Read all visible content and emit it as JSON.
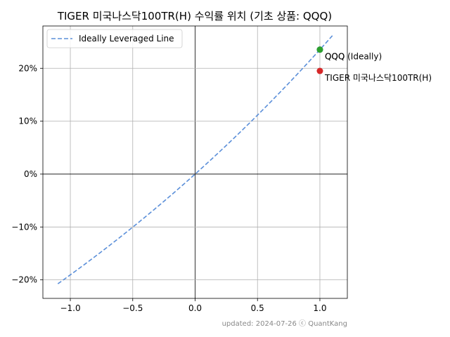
{
  "chart_data": {
    "type": "scatter",
    "title": "TIGER 미국나스닥100TR(H) 수익률 위치 (기초 상품: QQQ)",
    "xlabel": "",
    "ylabel": "",
    "xlim": [
      -1.22,
      1.22
    ],
    "ylim": [
      -0.235,
      0.28
    ],
    "x_ticks": [
      {
        "value": -1.0,
        "label": "−1.0"
      },
      {
        "value": -0.5,
        "label": "−0.5"
      },
      {
        "value": 0.0,
        "label": "0.0"
      },
      {
        "value": 0.5,
        "label": "0.5"
      },
      {
        "value": 1.0,
        "label": "1.0"
      }
    ],
    "y_ticks": [
      {
        "value": -0.2,
        "label": "−20%"
      },
      {
        "value": -0.1,
        "label": "−10%"
      },
      {
        "value": 0.0,
        "label": "0%"
      },
      {
        "value": 0.1,
        "label": "10%"
      },
      {
        "value": 0.2,
        "label": "20%"
      }
    ],
    "grid": true,
    "legend_position": "top-left",
    "series": [
      {
        "name": "Ideally Leveraged Line",
        "kind": "line",
        "style": "dashed",
        "color": "#5b8fd9",
        "base_return": 0.2353,
        "x_range": [
          -1.1,
          1.1
        ]
      }
    ],
    "points": [
      {
        "label": "QQQ",
        "x": 1.0,
        "y": 0.2353,
        "color": "#2ca02c"
      },
      {
        "label": "QQQ (Ideally)",
        "x": 1.0,
        "y": 0.2353,
        "color": "#1f77b4"
      },
      {
        "label": "TIGER 미국나스닥100TR(H)",
        "x": 1.0,
        "y": 0.195,
        "color": "#d62728"
      }
    ],
    "footer": "updated: 2024-07-26 ⓒ QuantKang"
  }
}
